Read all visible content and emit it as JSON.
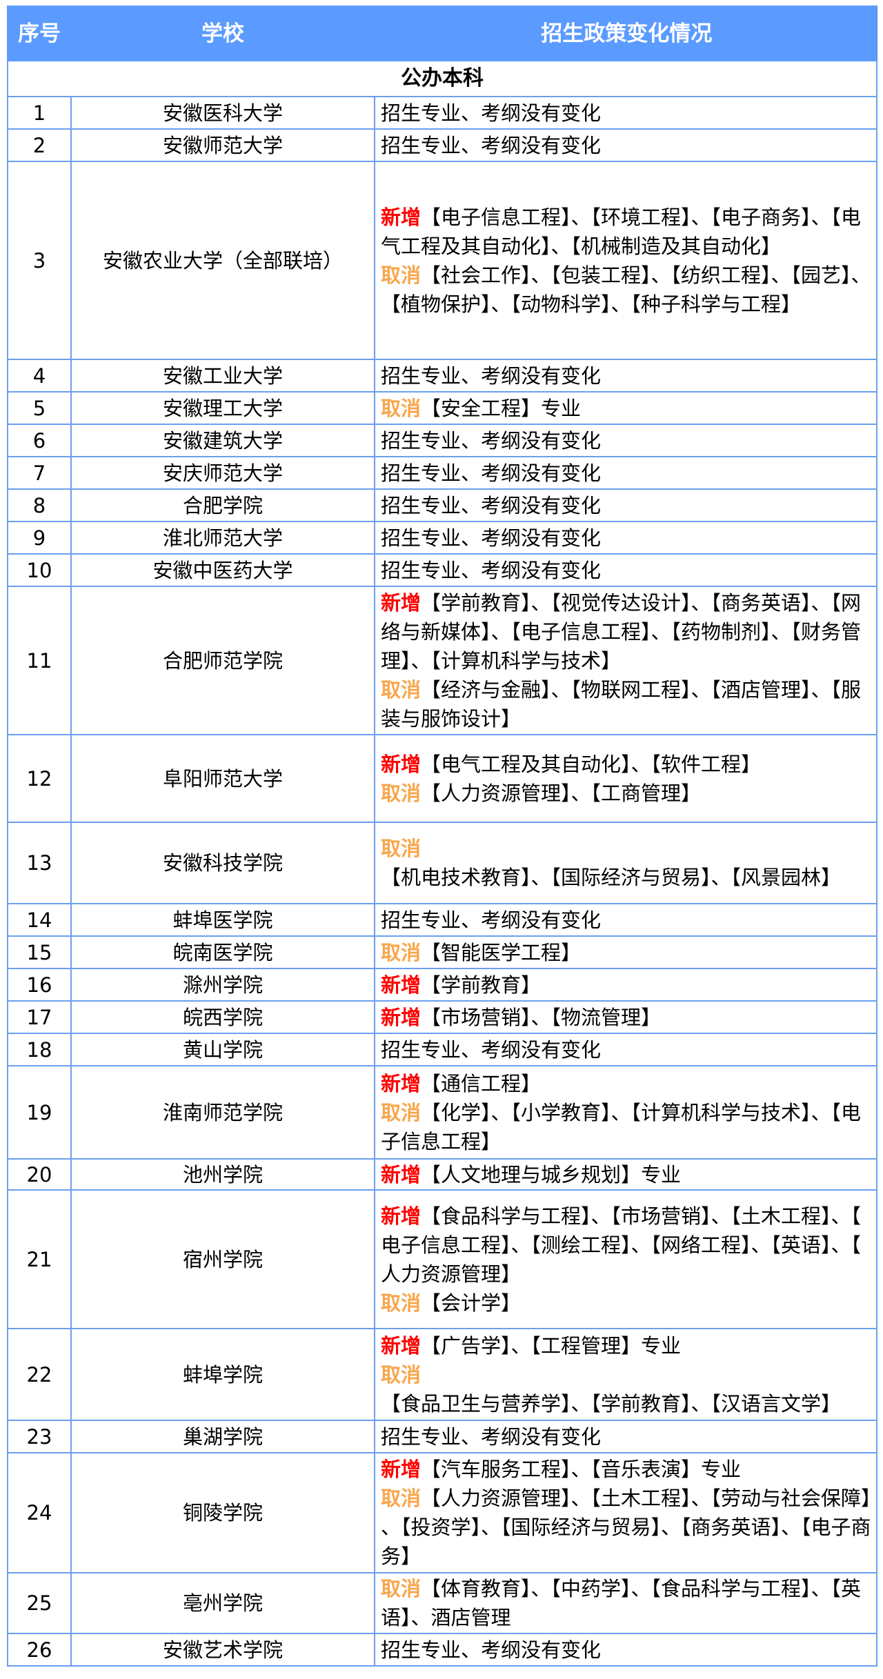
{
  "header": {
    "no": "序号",
    "school": "学校",
    "change": "招生政策变化情况"
  },
  "section_title": "公办本科",
  "colors": {
    "header_bg": "#5b9bff",
    "border": "#6a9ff0",
    "tag_add": "#ff0000",
    "tag_cancel": "#f8a64b"
  },
  "rows": [
    {
      "no": "1",
      "school": "安徽医科大学",
      "lines": [
        {
          "tag": "",
          "text": "招生专业、考纲没有变化"
        }
      ]
    },
    {
      "no": "2",
      "school": "安徽师范大学",
      "lines": [
        {
          "tag": "",
          "text": "招生专业、考纲没有变化"
        }
      ]
    },
    {
      "no": "3",
      "school": "安徽农业大学（全部联培）",
      "lines": [
        {
          "tag": "新增",
          "type": "add",
          "text": "【电子信息工程】、【环境工程】、【电子商务】、【电气工程及其自动化】、【机械制造及其自动化】"
        },
        {
          "tag": "取消",
          "type": "cancel",
          "text": "【社会工作】、【包装工程】、【纺织工程】、【园艺】、【植物保护】、【动物科学】、【种子科学与工程】"
        }
      ]
    },
    {
      "no": "4",
      "school": "安徽工业大学",
      "lines": [
        {
          "tag": "",
          "text": "招生专业、考纲没有变化"
        }
      ]
    },
    {
      "no": "5",
      "school": "安徽理工大学",
      "lines": [
        {
          "tag": "取消",
          "type": "cancel",
          "text": "【安全工程】专业"
        }
      ]
    },
    {
      "no": "6",
      "school": "安徽建筑大学",
      "lines": [
        {
          "tag": "",
          "text": "招生专业、考纲没有变化"
        }
      ]
    },
    {
      "no": "7",
      "school": "安庆师范大学",
      "lines": [
        {
          "tag": "",
          "text": "招生专业、考纲没有变化"
        }
      ]
    },
    {
      "no": "8",
      "school": "合肥学院",
      "lines": [
        {
          "tag": "",
          "text": "招生专业、考纲没有变化"
        }
      ]
    },
    {
      "no": "9",
      "school": "淮北师范大学",
      "lines": [
        {
          "tag": "",
          "text": "招生专业、考纲没有变化"
        }
      ]
    },
    {
      "no": "10",
      "school": "安徽中医药大学",
      "lines": [
        {
          "tag": "",
          "text": "招生专业、考纲没有变化"
        }
      ]
    },
    {
      "no": "11",
      "school": "合肥师范学院",
      "lines": [
        {
          "tag": "新增",
          "type": "add",
          "text": "【学前教育】、【视觉传达设计】、【商务英语】、【网络与新媒体】、【电子信息工程】、【药物制剂】、【财务管理】、【计算机科学与技术】"
        },
        {
          "tag": "取消",
          "type": "cancel",
          "text": "【经济与金融】、【物联网工程】、【酒店管理】、【服装与服饰设计】"
        }
      ]
    },
    {
      "no": "12",
      "school": "阜阳师范大学",
      "lines": [
        {
          "tag": "新增",
          "type": "add",
          "text": "【电气工程及其自动化】、【软件工程】"
        },
        {
          "tag": "取消",
          "type": "cancel",
          "text": "【人力资源管理】、【工商管理】"
        }
      ]
    },
    {
      "no": "13",
      "school": "安徽科技学院",
      "lines": [
        {
          "tag": "取消",
          "type": "cancel",
          "text": "【机电技术教育】、【国际经济与贸易】、【风景园林】"
        }
      ]
    },
    {
      "no": "14",
      "school": "蚌埠医学院",
      "lines": [
        {
          "tag": "",
          "text": "招生专业、考纲没有变化"
        }
      ]
    },
    {
      "no": "15",
      "school": "皖南医学院",
      "lines": [
        {
          "tag": "取消",
          "type": "cancel",
          "text": "【智能医学工程】"
        }
      ]
    },
    {
      "no": "16",
      "school": "滁州学院",
      "lines": [
        {
          "tag": "新增",
          "type": "add",
          "text": "【学前教育】"
        }
      ]
    },
    {
      "no": "17",
      "school": "皖西学院",
      "lines": [
        {
          "tag": "新增",
          "type": "add",
          "text": "【市场营销】、【物流管理】"
        }
      ]
    },
    {
      "no": "18",
      "school": "黄山学院",
      "lines": [
        {
          "tag": "",
          "text": "招生专业、考纲没有变化"
        }
      ]
    },
    {
      "no": "19",
      "school": "淮南师范学院",
      "lines": [
        {
          "tag": "新增",
          "type": "add",
          "text": "【通信工程】"
        },
        {
          "tag": "取消",
          "type": "cancel",
          "text": "【化学】、【小学教育】、【计算机科学与技术】、【电子信息工程】"
        }
      ]
    },
    {
      "no": "20",
      "school": "池州学院",
      "lines": [
        {
          "tag": "新增",
          "type": "add",
          "text": "【人文地理与城乡规划】专业"
        }
      ]
    },
    {
      "no": "21",
      "school": "宿州学院",
      "lines": [
        {
          "tag": "新增",
          "type": "add",
          "text": "【食品科学与工程】、【市场营销】、【土木工程】、【电子信息工程】、【测绘工程】、【网络工程】、【英语】、【人力资源管理】"
        },
        {
          "tag": "取消",
          "type": "cancel",
          "text": "【会计学】"
        }
      ]
    },
    {
      "no": "22",
      "school": "蚌埠学院",
      "lines": [
        {
          "tag": "新增",
          "type": "add",
          "text": "【广告学】、【工程管理】专业"
        },
        {
          "tag": "取消",
          "type": "cancel",
          "text": "【食品卫生与营养学】、【学前教育】、【汉语言文学】"
        }
      ]
    },
    {
      "no": "23",
      "school": "巢湖学院",
      "lines": [
        {
          "tag": "",
          "text": "招生专业、考纲没有变化"
        }
      ]
    },
    {
      "no": "24",
      "school": "铜陵学院",
      "lines": [
        {
          "tag": "新增",
          "type": "add",
          "text": "【汽车服务工程】、【音乐表演】专业"
        },
        {
          "tag": "取消",
          "type": "cancel",
          "text": "【人力资源管理】、【土木工程】、【劳动与社会保障】、【投资学】、【国际经济与贸易】、【商务英语】、【电子商务】"
        }
      ]
    },
    {
      "no": "25",
      "school": "亳州学院",
      "lines": [
        {
          "tag": "取消",
          "type": "cancel",
          "text": "【体育教育】、【中药学】、【食品科学与工程】、【英语】、酒店管理"
        }
      ]
    },
    {
      "no": "26",
      "school": "安徽艺术学院",
      "lines": [
        {
          "tag": "",
          "text": "招生专业、考纲没有变化"
        }
      ]
    }
  ]
}
